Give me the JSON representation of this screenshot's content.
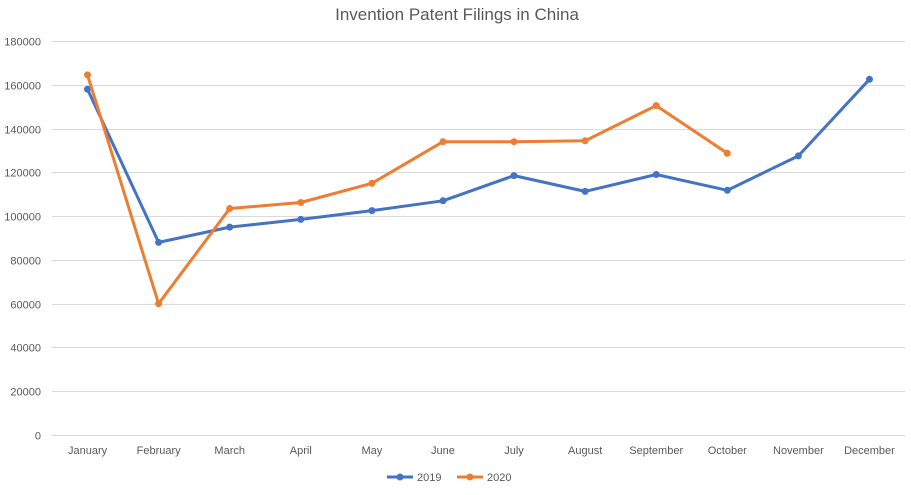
{
  "chart_data": {
    "type": "line",
    "title": "Invention Patent Filings in China",
    "xlabel": "",
    "ylabel": "",
    "categories": [
      "January",
      "February",
      "March",
      "April",
      "May",
      "June",
      "July",
      "August",
      "September",
      "October",
      "November",
      "December"
    ],
    "ylim": [
      0,
      180000
    ],
    "yticks": [
      0,
      20000,
      40000,
      60000,
      80000,
      100000,
      120000,
      140000,
      160000,
      180000
    ],
    "grid": true,
    "legend_position": "bottom",
    "series": [
      {
        "name": "2019",
        "color": "#4472c4",
        "values": [
          158000,
          88000,
          95000,
          98500,
          102500,
          107000,
          118500,
          111300,
          119000,
          111800,
          127500,
          162500
        ]
      },
      {
        "name": "2020",
        "color": "#ed7d31",
        "values": [
          164500,
          60000,
          103500,
          106200,
          115000,
          134000,
          134000,
          134400,
          150500,
          128700,
          null,
          null
        ]
      }
    ]
  }
}
